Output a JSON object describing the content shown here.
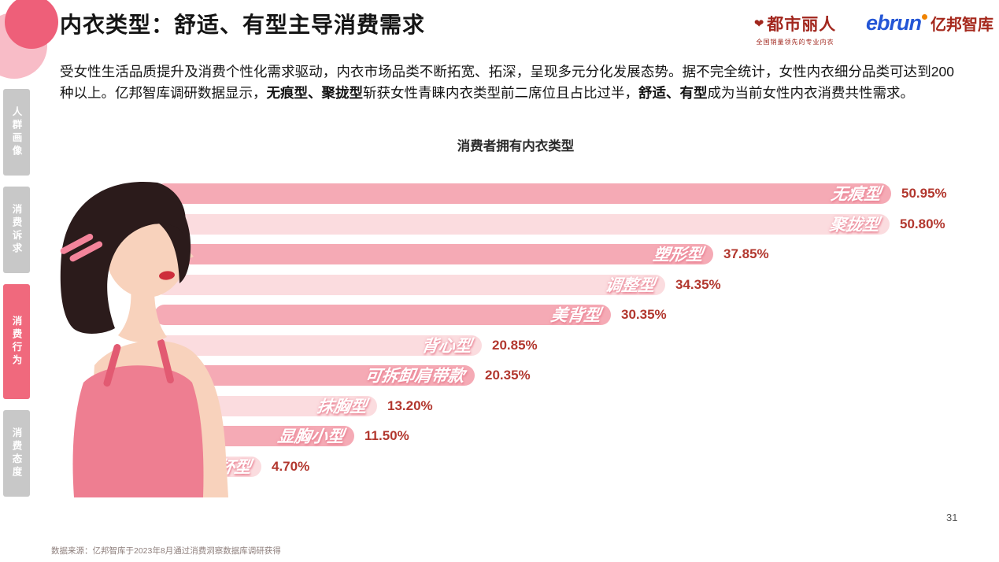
{
  "page": {
    "number": "31"
  },
  "header": {
    "title": "内衣类型：舒适、有型主导消费需求",
    "brand_left": {
      "name": "都市丽人",
      "tagline": "全国销量领先的专业内衣"
    },
    "brand_right": {
      "latin": "ebrun",
      "name": "亿邦智库"
    }
  },
  "sidebar": {
    "items": [
      {
        "id": "renqun-huaxiang",
        "label": "人群画像",
        "active": false
      },
      {
        "id": "xiaofei-suqiu",
        "label": "消费诉求",
        "active": false
      },
      {
        "id": "xiaofei-xingwei",
        "label": "消费行为",
        "active": true
      },
      {
        "id": "xiaofei-taidu",
        "label": "消费态度",
        "active": false
      }
    ]
  },
  "intro": {
    "segments": [
      {
        "text": "受女性生活品质提升及消费个性化需求驱动，内衣市场品类不断拓宽、拓深，呈现多元分化发展态势。据不完全统计，女性内衣细分品类可达到200种以上。亿邦智库调研数据显示，",
        "bold": false
      },
      {
        "text": "无痕型、聚拢型",
        "bold": true
      },
      {
        "text": "斩获女性青睐内衣类型前二席位且占比过半，",
        "bold": false
      },
      {
        "text": "舒适、有型",
        "bold": true
      },
      {
        "text": "成为当前女性内衣消费共性需求。",
        "bold": false
      }
    ]
  },
  "chart_data": {
    "type": "bar",
    "orientation": "horizontal",
    "title": "消费者拥有内衣类型",
    "categories": [
      "无痕型",
      "聚拢型",
      "塑形型",
      "调整型",
      "美背型",
      "背心型",
      "可拆卸肩带款",
      "抹胸型",
      "显胸小型",
      "大罩杯型"
    ],
    "values": [
      50.95,
      50.8,
      37.85,
      34.35,
      30.35,
      20.85,
      20.35,
      13.2,
      11.5,
      4.7
    ],
    "value_labels": [
      "50.95%",
      "50.80%",
      "37.85%",
      "34.35%",
      "30.35%",
      "20.85%",
      "20.35%",
      "13.20%",
      "11.50%",
      "4.70%"
    ],
    "xlim": [
      0,
      55
    ],
    "grid": false,
    "legend": false,
    "bar_colors_alternate": [
      "#f5aab5",
      "#fbdcdf"
    ],
    "value_color": "#b2372e"
  },
  "footer": {
    "source": "数据来源：亿邦智库于2023年8月通过消费洞察数据库调研获得"
  }
}
